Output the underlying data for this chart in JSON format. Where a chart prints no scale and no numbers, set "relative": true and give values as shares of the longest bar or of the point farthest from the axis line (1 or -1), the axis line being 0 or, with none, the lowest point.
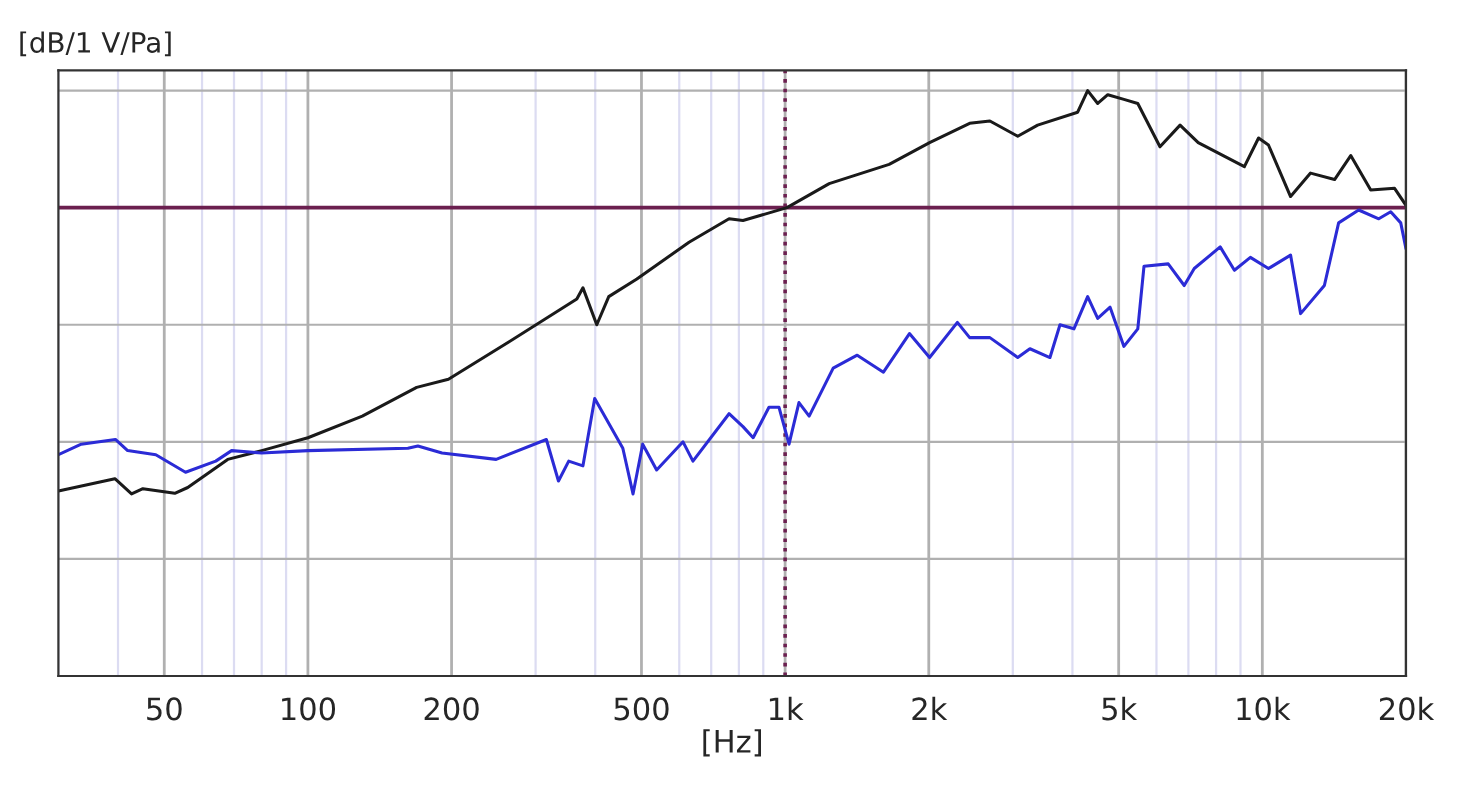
{
  "chart_data": {
    "type": "line",
    "ylabel": "[dB/1 V/Pa]",
    "xlabel": "[Hz]",
    "relative": true,
    "log": "x",
    "grid": true,
    "legend": false,
    "marker": "none",
    "line_style": "solid",
    "xlim": [
      30,
      20000
    ],
    "xticks": [
      50,
      100,
      200,
      500,
      {
        "value": 1000,
        "label": "1k"
      },
      {
        "value": 2000,
        "label": "2k"
      },
      {
        "value": 5000,
        "label": "5k"
      },
      {
        "value": 10000,
        "label": "10k"
      },
      {
        "value": 20000,
        "label": "20k"
      }
    ],
    "ref_lines": [
      {
        "axis": "x",
        "value": 1000,
        "label": null,
        "color": "#6b1f4f",
        "line_style": "dotted"
      },
      {
        "axis": "y",
        "value": 0.8,
        "label": null,
        "color": "#6b1f4f",
        "line_style": "solid"
      }
    ],
    "series": [
      {
        "color": "#1a1a1a",
        "x": [
          30,
          39.4,
          42.7,
          45.1,
          52.6,
          56,
          67.9,
          80,
          100,
          130,
          169,
          197,
          263,
          366,
          377,
          403,
          427,
          489,
          629,
          763,
          816,
          1009,
          1237,
          1652,
          2008,
          2436,
          2686,
          3072,
          3382,
          4102,
          4305,
          4519,
          4744,
          5128,
          5483,
          6103,
          6724,
          7339,
          9170,
          9820,
          10300,
          11460,
          12620,
          14170,
          15320,
          16870,
          18930,
          20000
        ],
        "values": [
          0.316,
          0.337,
          0.311,
          0.32,
          0.312,
          0.322,
          0.37,
          0.385,
          0.407,
          0.444,
          0.493,
          0.507,
          0.57,
          0.644,
          0.663,
          0.6,
          0.648,
          0.678,
          0.741,
          0.781,
          0.778,
          0.8,
          0.841,
          0.874,
          0.911,
          0.944,
          0.948,
          0.922,
          0.941,
          0.963,
          1,
          0.978,
          0.993,
          0.985,
          0.978,
          0.904,
          0.941,
          0.911,
          0.87,
          0.919,
          0.907,
          0.819,
          0.859,
          0.848,
          0.889,
          0.83,
          0.833,
          0.804
        ]
      },
      {
        "color": "#2b2bd6",
        "x": [
          30,
          33.5,
          39.5,
          41.9,
          48,
          55.4,
          64.1,
          69.2,
          80,
          100,
          162,
          170,
          191,
          248,
          316,
          335,
          352,
          377,
          399,
          457,
          480,
          503,
          538,
          611,
          641,
          763,
          816,
          857,
          925,
          971,
          1019,
          1069,
          1123,
          1261,
          1416,
          1607,
          1822,
          2008,
          2296,
          2436,
          2686,
          3072,
          3258,
          3589,
          3767,
          4029,
          4305,
          4519,
          4797,
          5128,
          5483,
          5650,
          6350,
          6860,
          7200,
          8160,
          8740,
          9440,
          10300,
          11460,
          12030,
          13490,
          14450,
          15920,
          17540,
          18580,
          19500,
          20000
        ],
        "values": [
          0.378,
          0.396,
          0.404,
          0.385,
          0.378,
          0.348,
          0.367,
          0.385,
          0.381,
          0.385,
          0.389,
          0.393,
          0.381,
          0.37,
          0.404,
          0.333,
          0.367,
          0.359,
          0.474,
          0.389,
          0.311,
          0.396,
          0.352,
          0.4,
          0.367,
          0.448,
          0.426,
          0.407,
          0.459,
          0.459,
          0.396,
          0.467,
          0.444,
          0.526,
          0.548,
          0.519,
          0.585,
          0.544,
          0.604,
          0.578,
          0.578,
          0.544,
          0.559,
          0.544,
          0.6,
          0.593,
          0.648,
          0.611,
          0.63,
          0.563,
          0.593,
          0.7,
          0.704,
          0.667,
          0.696,
          0.733,
          0.693,
          0.715,
          0.696,
          0.719,
          0.619,
          0.667,
          0.774,
          0.796,
          0.781,
          0.793,
          0.774,
          0.73
        ]
      }
    ]
  }
}
